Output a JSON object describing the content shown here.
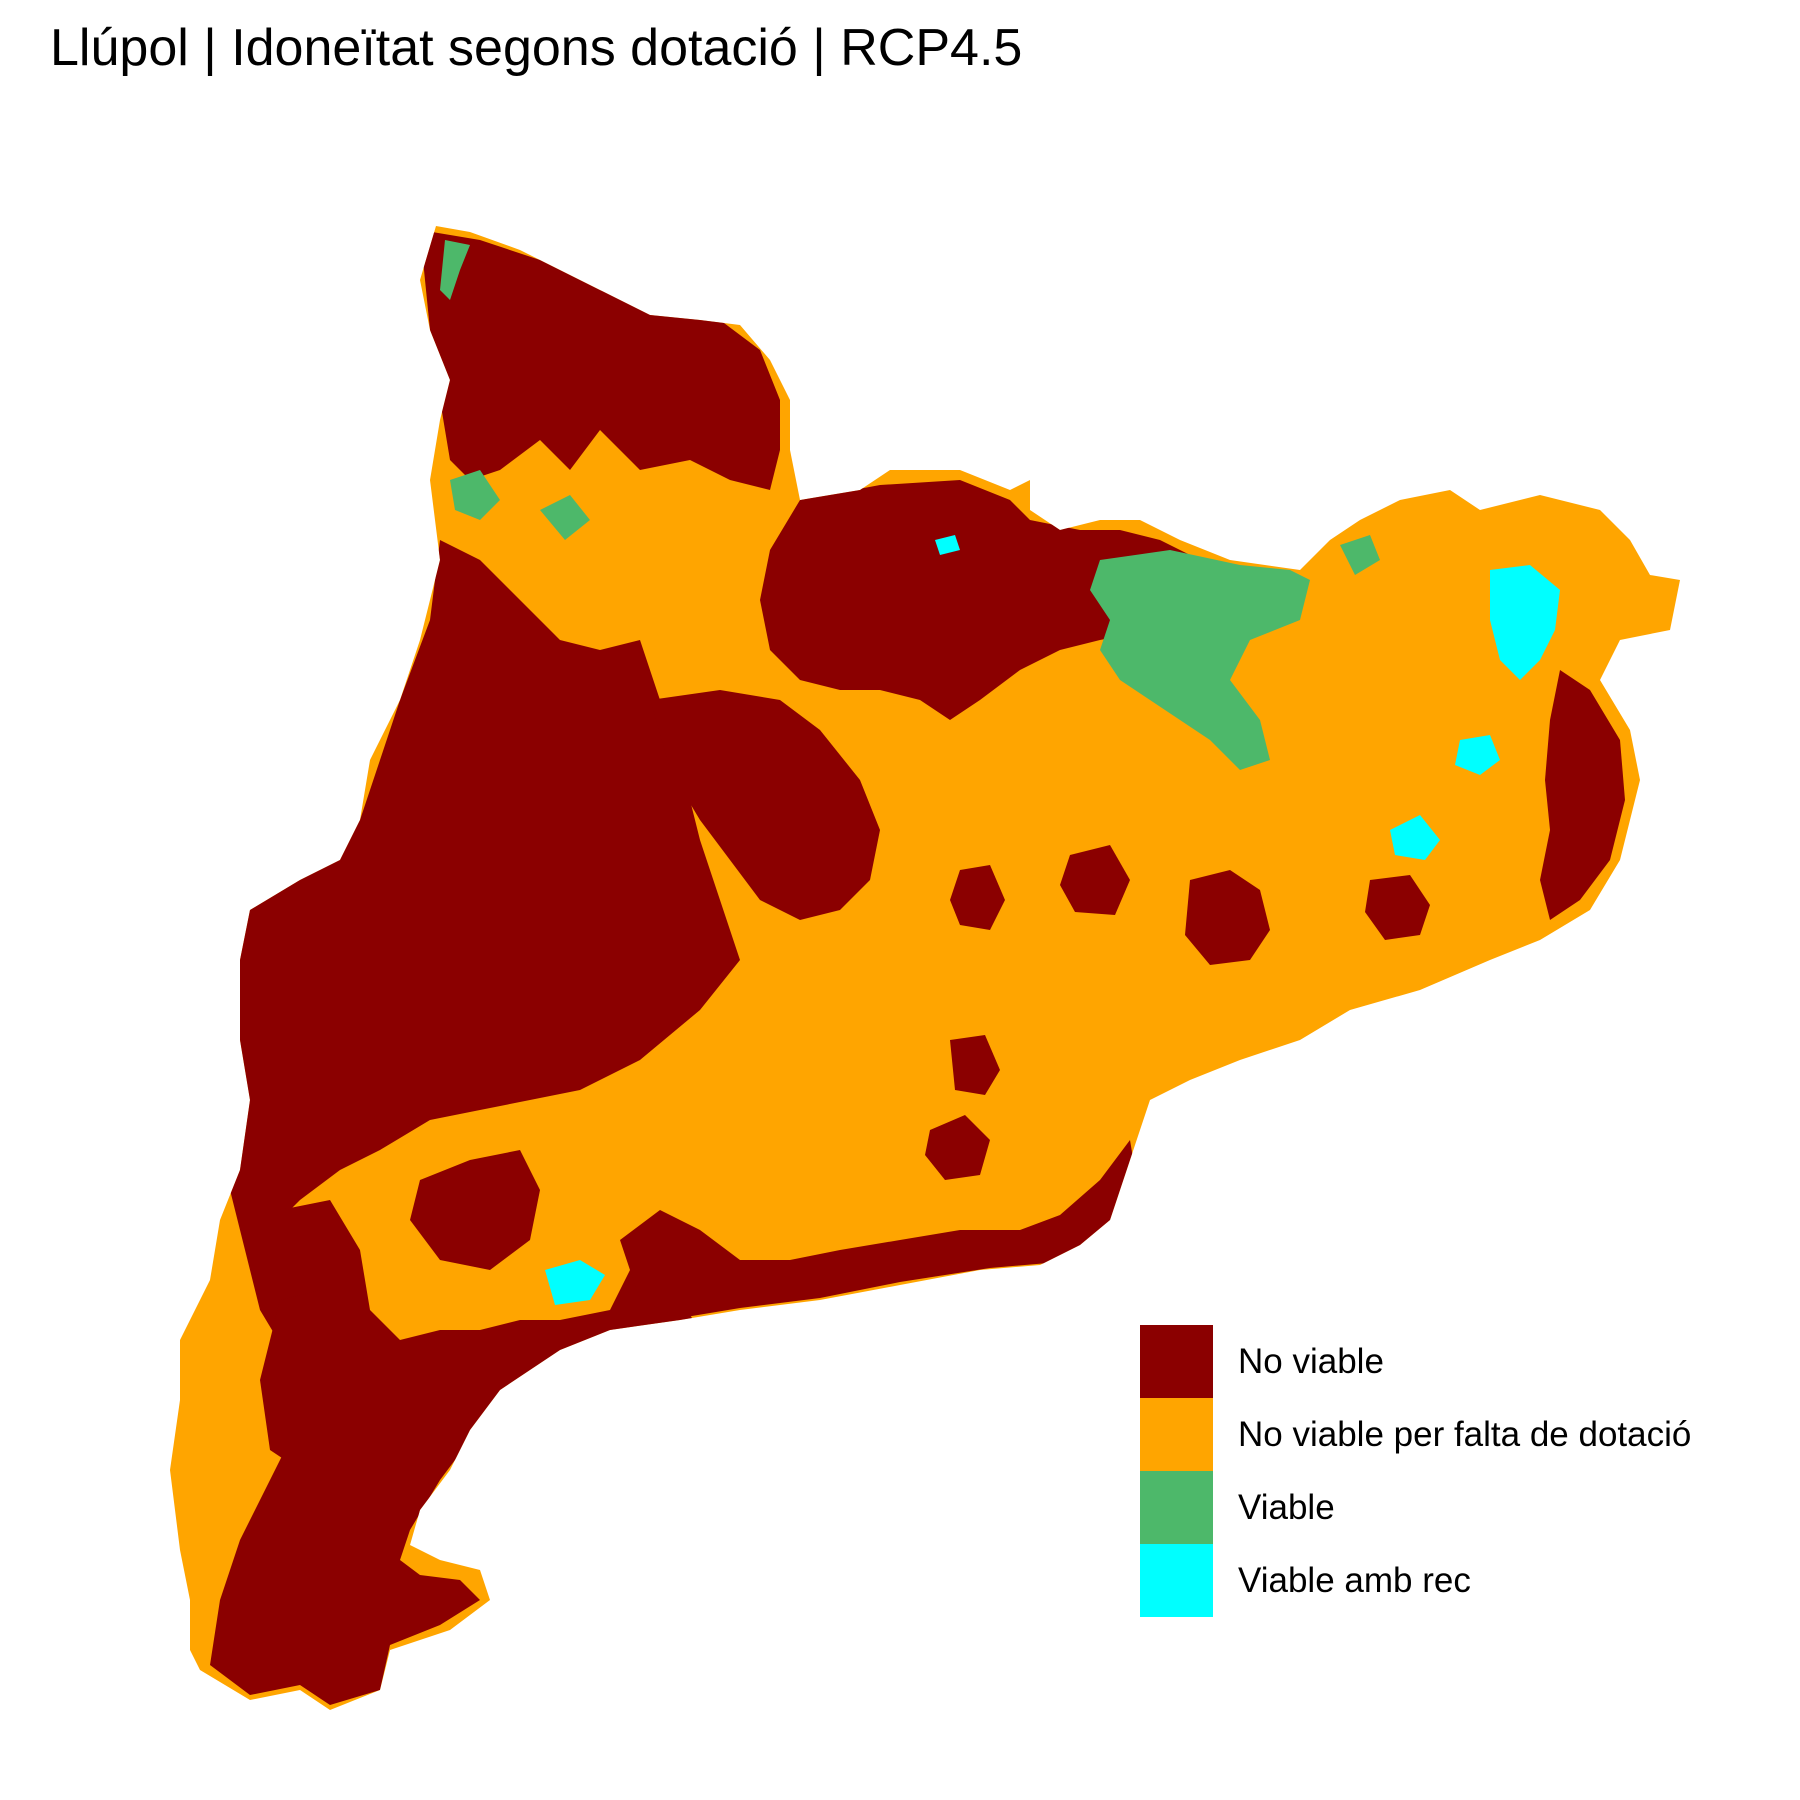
{
  "title": "Llúpol | Idoneïtat segons dotació | RCP4.5",
  "legend": {
    "items": [
      {
        "label": "No viable",
        "color": "#8B0000"
      },
      {
        "label": "No viable per falta de dotació",
        "color": "#FFA500"
      },
      {
        "label": "Viable",
        "color": "#4DB86A"
      },
      {
        "label": "Viable amb rec",
        "color": "#00FFFF"
      }
    ]
  }
}
